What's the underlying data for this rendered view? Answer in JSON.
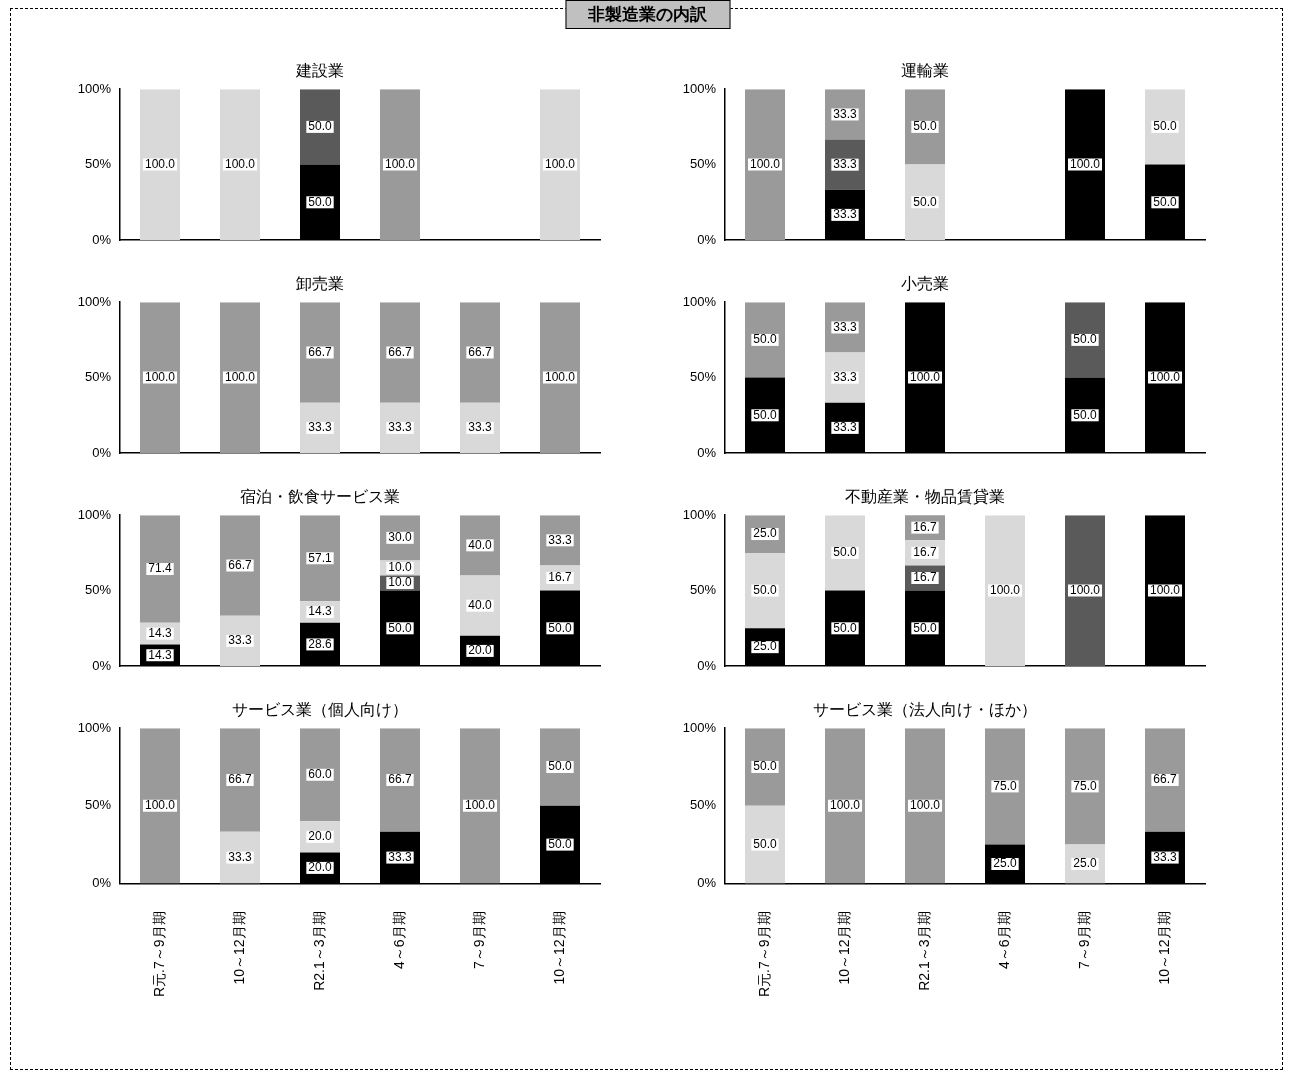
{
  "chart_data": [
    {
      "type": "other",
      "title": "非製造業の内訳"
    },
    {
      "type": "bar",
      "title": "建設業",
      "stacked": true,
      "tick_labels": "y",
      "categories": [
        null,
        null,
        null,
        null,
        null,
        null
      ],
      "ylim": [
        0,
        100
      ],
      "yticks": [
        {
          "value": 0,
          "label": "0%"
        },
        {
          "value": 50,
          "label": "50%"
        },
        {
          "value": 100,
          "label": "100%"
        }
      ],
      "series": [
        {
          "color": "#000000",
          "values": [
            null,
            null,
            50,
            null,
            null,
            null
          ],
          "value_labels": [
            null,
            null,
            "50.0",
            null,
            null,
            null
          ]
        },
        {
          "color": "#5a5a5a",
          "values": [
            null,
            null,
            50,
            null,
            null,
            null
          ],
          "value_labels": [
            null,
            null,
            "50.0",
            null,
            null,
            null
          ]
        },
        {
          "color": "#d9d9d9",
          "values": [
            100,
            100,
            null,
            null,
            null,
            100
          ],
          "value_labels": [
            "100.0",
            "100.0",
            null,
            null,
            null,
            "100.0"
          ]
        },
        {
          "color": "#9a9a9a",
          "values": [
            null,
            null,
            null,
            100,
            null,
            null
          ],
          "value_labels": [
            null,
            null,
            null,
            "100.0",
            null,
            null
          ]
        }
      ]
    },
    {
      "type": "bar",
      "title": "運輸業",
      "stacked": true,
      "tick_labels": "y",
      "categories": [
        null,
        null,
        null,
        null,
        null,
        null
      ],
      "ylim": [
        0,
        100
      ],
      "yticks": [
        {
          "value": 0,
          "label": "0%"
        },
        {
          "value": 50,
          "label": "50%"
        },
        {
          "value": 100,
          "label": "100%"
        }
      ],
      "series": [
        {
          "color": "#000000",
          "values": [
            null,
            33.3,
            null,
            null,
            100,
            50
          ],
          "value_labels": [
            null,
            "33.3",
            null,
            null,
            "100.0",
            "50.0"
          ]
        },
        {
          "color": "#5a5a5a",
          "values": [
            null,
            33.3,
            null,
            null,
            null,
            null
          ],
          "value_labels": [
            null,
            "33.3",
            null,
            null,
            null,
            null
          ]
        },
        {
          "color": "#d9d9d9",
          "values": [
            null,
            null,
            50,
            null,
            null,
            50
          ],
          "value_labels": [
            null,
            null,
            "50.0",
            null,
            null,
            "50.0"
          ]
        },
        {
          "color": "#9a9a9a",
          "values": [
            100,
            33.3,
            50,
            null,
            null,
            null
          ],
          "value_labels": [
            "100.0",
            "33.3",
            "50.0",
            null,
            null,
            null
          ]
        }
      ]
    },
    {
      "type": "bar",
      "title": "卸売業",
      "stacked": true,
      "tick_labels": "y",
      "categories": [
        null,
        null,
        null,
        null,
        null,
        null
      ],
      "ylim": [
        0,
        100
      ],
      "yticks": [
        {
          "value": 0,
          "label": "0%"
        },
        {
          "value": 50,
          "label": "50%"
        },
        {
          "value": 100,
          "label": "100%"
        }
      ],
      "series": [
        {
          "color": "#000000",
          "values": [
            null,
            null,
            null,
            null,
            null,
            null
          ],
          "value_labels": [
            null,
            null,
            null,
            null,
            null,
            null
          ]
        },
        {
          "color": "#5a5a5a",
          "values": [
            null,
            null,
            null,
            null,
            null,
            null
          ],
          "value_labels": [
            null,
            null,
            null,
            null,
            null,
            null
          ]
        },
        {
          "color": "#d9d9d9",
          "values": [
            null,
            null,
            33.3,
            33.3,
            33.3,
            null
          ],
          "value_labels": [
            null,
            null,
            "33.3",
            "33.3",
            "33.3",
            null
          ]
        },
        {
          "color": "#9a9a9a",
          "values": [
            100,
            100,
            66.7,
            66.7,
            66.7,
            100
          ],
          "value_labels": [
            "100.0",
            "100.0",
            "66.7",
            "66.7",
            "66.7",
            "100.0"
          ]
        }
      ]
    },
    {
      "type": "bar",
      "title": "小売業",
      "stacked": true,
      "tick_labels": "y",
      "categories": [
        null,
        null,
        null,
        null,
        null,
        null
      ],
      "ylim": [
        0,
        100
      ],
      "yticks": [
        {
          "value": 0,
          "label": "0%"
        },
        {
          "value": 50,
          "label": "50%"
        },
        {
          "value": 100,
          "label": "100%"
        }
      ],
      "series": [
        {
          "color": "#000000",
          "values": [
            50,
            33.3,
            100,
            null,
            50,
            100
          ],
          "value_labels": [
            "50.0",
            "33.3",
            "100.0",
            null,
            "50.0",
            "100.0"
          ]
        },
        {
          "color": "#5a5a5a",
          "values": [
            null,
            null,
            null,
            null,
            50,
            null
          ],
          "value_labels": [
            null,
            null,
            null,
            null,
            "50.0",
            null
          ]
        },
        {
          "color": "#d9d9d9",
          "values": [
            null,
            33.3,
            null,
            null,
            null,
            null
          ],
          "value_labels": [
            null,
            "33.3",
            null,
            null,
            null,
            null
          ]
        },
        {
          "color": "#9a9a9a",
          "values": [
            50,
            33.3,
            null,
            null,
            null,
            null
          ],
          "value_labels": [
            "50.0",
            "33.3",
            null,
            null,
            null,
            null
          ]
        }
      ]
    },
    {
      "type": "bar",
      "title": "宿泊・飲食サービス業",
      "stacked": true,
      "tick_labels": "y",
      "categories": [
        null,
        null,
        null,
        null,
        null,
        null
      ],
      "ylim": [
        0,
        100
      ],
      "yticks": [
        {
          "value": 0,
          "label": "0%"
        },
        {
          "value": 50,
          "label": "50%"
        },
        {
          "value": 100,
          "label": "100%"
        }
      ],
      "series": [
        {
          "color": "#000000",
          "values": [
            14.3,
            null,
            28.6,
            50,
            20,
            50
          ],
          "value_labels": [
            "14.3",
            null,
            "28.6",
            "50.0",
            "20.0",
            "50.0"
          ]
        },
        {
          "color": "#5a5a5a",
          "values": [
            null,
            null,
            null,
            10,
            null,
            null
          ],
          "value_labels": [
            null,
            null,
            null,
            "10.0",
            null,
            null
          ]
        },
        {
          "color": "#d9d9d9",
          "values": [
            14.3,
            33.3,
            14.3,
            10,
            40,
            16.7
          ],
          "value_labels": [
            "14.3",
            "33.3",
            "14.3",
            "10.0",
            "40.0",
            "16.7"
          ]
        },
        {
          "color": "#9a9a9a",
          "values": [
            71.4,
            66.7,
            57.1,
            30,
            40,
            33.3
          ],
          "value_labels": [
            "71.4",
            "66.7",
            "57.1",
            "30.0",
            "40.0",
            "33.3"
          ]
        }
      ]
    },
    {
      "type": "bar",
      "title": "不動産業・物品賃貸業",
      "stacked": true,
      "tick_labels": "y",
      "categories": [
        null,
        null,
        null,
        null,
        null,
        null
      ],
      "ylim": [
        0,
        100
      ],
      "yticks": [
        {
          "value": 0,
          "label": "0%"
        },
        {
          "value": 50,
          "label": "50%"
        },
        {
          "value": 100,
          "label": "100%"
        }
      ],
      "series": [
        {
          "color": "#000000",
          "values": [
            25,
            50,
            50,
            null,
            null,
            100
          ],
          "value_labels": [
            "25.0",
            "50.0",
            "50.0",
            null,
            null,
            "100.0"
          ]
        },
        {
          "color": "#5a5a5a",
          "values": [
            null,
            null,
            16.7,
            null,
            100,
            null
          ],
          "value_labels": [
            null,
            null,
            "16.7",
            null,
            "100.0",
            null
          ]
        },
        {
          "color": "#d9d9d9",
          "values": [
            50,
            50,
            16.7,
            100,
            null,
            null
          ],
          "value_labels": [
            "50.0",
            "50.0",
            "16.7",
            "100.0",
            null,
            null
          ]
        },
        {
          "color": "#9a9a9a",
          "values": [
            25,
            null,
            16.7,
            null,
            null,
            null
          ],
          "value_labels": [
            "25.0",
            null,
            "16.7",
            null,
            null,
            null
          ]
        }
      ]
    },
    {
      "type": "bar",
      "title": "サービス業（個人向け）",
      "stacked": true,
      "categories": [
        "R元.7～9月期",
        "10～12月期",
        "R2.1～3月期",
        "4～6月期",
        "7～9月期",
        "10～12月期"
      ],
      "ylim": [
        0,
        100
      ],
      "yticks": [
        {
          "value": 0,
          "label": "0%"
        },
        {
          "value": 50,
          "label": "50%"
        },
        {
          "value": 100,
          "label": "100%"
        }
      ],
      "series": [
        {
          "color": "#000000",
          "values": [
            null,
            null,
            20,
            33.3,
            null,
            50
          ],
          "value_labels": [
            null,
            null,
            "20.0",
            "33.3",
            null,
            "50.0"
          ]
        },
        {
          "color": "#5a5a5a",
          "values": [
            null,
            null,
            null,
            null,
            null,
            null
          ],
          "value_labels": [
            null,
            null,
            null,
            null,
            null,
            null
          ]
        },
        {
          "color": "#d9d9d9",
          "values": [
            null,
            33.3,
            20,
            null,
            null,
            null
          ],
          "value_labels": [
            null,
            "33.3",
            "20.0",
            null,
            null,
            null
          ]
        },
        {
          "color": "#9a9a9a",
          "values": [
            100,
            66.7,
            60,
            66.7,
            100,
            50
          ],
          "value_labels": [
            "100.0",
            "66.7",
            "60.0",
            "66.7",
            "100.0",
            "50.0"
          ]
        }
      ]
    },
    {
      "type": "bar",
      "title": "サービス業（法人向け・ほか）",
      "stacked": true,
      "categories": [
        "R元.7～9月期",
        "10～12月期",
        "R2.1～3月期",
        "4～6月期",
        "7～9月期",
        "10～12月期"
      ],
      "ylim": [
        0,
        100
      ],
      "yticks": [
        {
          "value": 0,
          "label": "0%"
        },
        {
          "value": 50,
          "label": "50%"
        },
        {
          "value": 100,
          "label": "100%"
        }
      ],
      "series": [
        {
          "color": "#000000",
          "values": [
            null,
            null,
            null,
            25,
            null,
            33.3
          ],
          "value_labels": [
            null,
            null,
            null,
            "25.0",
            null,
            "33.3"
          ]
        },
        {
          "color": "#5a5a5a",
          "values": [
            null,
            null,
            null,
            null,
            null,
            null
          ],
          "value_labels": [
            null,
            null,
            null,
            null,
            null,
            null
          ]
        },
        {
          "color": "#d9d9d9",
          "values": [
            50,
            null,
            null,
            null,
            25,
            null
          ],
          "value_labels": [
            "50.0",
            null,
            null,
            null,
            "25.0",
            null
          ]
        },
        {
          "color": "#9a9a9a",
          "values": [
            50,
            100,
            100,
            75,
            75,
            66.7
          ],
          "value_labels": [
            "50.0",
            "100.0",
            "100.0",
            "75.0",
            "75.0",
            "66.7"
          ]
        }
      ]
    }
  ]
}
